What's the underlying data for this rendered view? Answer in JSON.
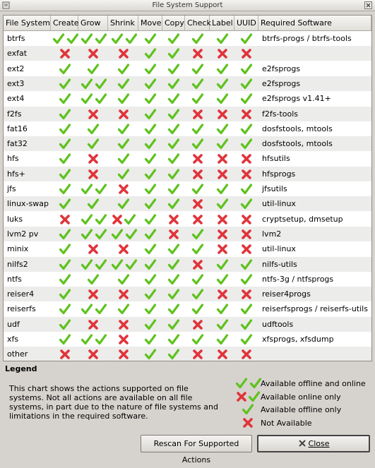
{
  "window": {
    "title": "File System Support"
  },
  "table": {
    "columns": [
      "File System",
      "Create",
      "Grow",
      "Shrink",
      "Move",
      "Copy",
      "Check",
      "Label",
      "UUID",
      "Required Software"
    ],
    "rows": [
      {
        "fs": "btrfs",
        "create": "both",
        "grow": "both",
        "shrink": "both",
        "move": "offline",
        "copy": "offline",
        "check": "offline",
        "label": "offline",
        "uuid": "offline",
        "software": "btrfs-progs / btrfs-tools"
      },
      {
        "fs": "exfat",
        "create": "none",
        "grow": "none",
        "shrink": "none",
        "move": "offline",
        "copy": "offline",
        "check": "none",
        "label": "none",
        "uuid": "none",
        "software": ""
      },
      {
        "fs": "ext2",
        "create": "offline",
        "grow": "offline",
        "shrink": "offline",
        "move": "offline",
        "copy": "offline",
        "check": "offline",
        "label": "offline",
        "uuid": "offline",
        "software": "e2fsprogs"
      },
      {
        "fs": "ext3",
        "create": "offline",
        "grow": "both",
        "shrink": "offline",
        "move": "offline",
        "copy": "offline",
        "check": "offline",
        "label": "offline",
        "uuid": "offline",
        "software": "e2fsprogs"
      },
      {
        "fs": "ext4",
        "create": "offline",
        "grow": "both",
        "shrink": "offline",
        "move": "offline",
        "copy": "offline",
        "check": "offline",
        "label": "offline",
        "uuid": "offline",
        "software": "e2fsprogs v1.41+"
      },
      {
        "fs": "f2fs",
        "create": "offline",
        "grow": "none",
        "shrink": "none",
        "move": "offline",
        "copy": "offline",
        "check": "none",
        "label": "none",
        "uuid": "none",
        "software": "f2fs-tools"
      },
      {
        "fs": "fat16",
        "create": "offline",
        "grow": "offline",
        "shrink": "offline",
        "move": "offline",
        "copy": "offline",
        "check": "offline",
        "label": "offline",
        "uuid": "offline",
        "software": "dosfstools, mtools"
      },
      {
        "fs": "fat32",
        "create": "offline",
        "grow": "offline",
        "shrink": "offline",
        "move": "offline",
        "copy": "offline",
        "check": "offline",
        "label": "offline",
        "uuid": "offline",
        "software": "dosfstools, mtools"
      },
      {
        "fs": "hfs",
        "create": "offline",
        "grow": "none",
        "shrink": "offline",
        "move": "offline",
        "copy": "offline",
        "check": "none",
        "label": "none",
        "uuid": "none",
        "software": "hfsutils"
      },
      {
        "fs": "hfs+",
        "create": "offline",
        "grow": "none",
        "shrink": "offline",
        "move": "offline",
        "copy": "offline",
        "check": "none",
        "label": "none",
        "uuid": "none",
        "software": "hfsprogs"
      },
      {
        "fs": "jfs",
        "create": "offline",
        "grow": "both",
        "shrink": "none",
        "move": "offline",
        "copy": "offline",
        "check": "offline",
        "label": "offline",
        "uuid": "offline",
        "software": "jfsutils"
      },
      {
        "fs": "linux-swap",
        "create": "offline",
        "grow": "offline",
        "shrink": "offline",
        "move": "offline",
        "copy": "offline",
        "check": "none",
        "label": "offline",
        "uuid": "offline",
        "software": "util-linux"
      },
      {
        "fs": "luks",
        "create": "none",
        "grow": "both",
        "shrink": "online",
        "move": "offline",
        "copy": "none",
        "check": "none",
        "label": "none",
        "uuid": "none",
        "software": "cryptsetup, dmsetup"
      },
      {
        "fs": "lvm2 pv",
        "create": "offline",
        "grow": "both",
        "shrink": "both",
        "move": "offline",
        "copy": "none",
        "check": "offline",
        "label": "none",
        "uuid": "none",
        "software": "lvm2"
      },
      {
        "fs": "minix",
        "create": "offline",
        "grow": "none",
        "shrink": "none",
        "move": "offline",
        "copy": "offline",
        "check": "offline",
        "label": "none",
        "uuid": "none",
        "software": "util-linux"
      },
      {
        "fs": "nilfs2",
        "create": "offline",
        "grow": "both",
        "shrink": "both",
        "move": "offline",
        "copy": "offline",
        "check": "none",
        "label": "offline",
        "uuid": "offline",
        "software": "nilfs-utils"
      },
      {
        "fs": "ntfs",
        "create": "offline",
        "grow": "offline",
        "shrink": "offline",
        "move": "offline",
        "copy": "offline",
        "check": "offline",
        "label": "offline",
        "uuid": "offline",
        "software": "ntfs-3g / ntfsprogs"
      },
      {
        "fs": "reiser4",
        "create": "offline",
        "grow": "none",
        "shrink": "none",
        "move": "offline",
        "copy": "offline",
        "check": "offline",
        "label": "none",
        "uuid": "none",
        "software": "reiser4progs"
      },
      {
        "fs": "reiserfs",
        "create": "offline",
        "grow": "both",
        "shrink": "offline",
        "move": "offline",
        "copy": "offline",
        "check": "offline",
        "label": "offline",
        "uuid": "offline",
        "software": "reiserfsprogs / reiserfs-utils"
      },
      {
        "fs": "udf",
        "create": "offline",
        "grow": "none",
        "shrink": "none",
        "move": "offline",
        "copy": "offline",
        "check": "none",
        "label": "offline",
        "uuid": "offline",
        "software": "udftools"
      },
      {
        "fs": "xfs",
        "create": "offline",
        "grow": "both",
        "shrink": "none",
        "move": "offline",
        "copy": "offline",
        "check": "offline",
        "label": "offline",
        "uuid": "offline",
        "software": "xfsprogs, xfsdump"
      },
      {
        "fs": "other",
        "create": "none",
        "grow": "none",
        "shrink": "none",
        "move": "offline",
        "copy": "offline",
        "check": "none",
        "label": "none",
        "uuid": "none",
        "software": ""
      }
    ]
  },
  "legend": {
    "title": "Legend",
    "text": "This chart shows the actions supported on file systems. Not all actions are available on all file systems, in part due to the nature of file systems and limitations in the required software.",
    "items": [
      {
        "icon": "both",
        "label": "Available offline and online"
      },
      {
        "icon": "online",
        "label": "Available online only"
      },
      {
        "icon": "offline",
        "label": "Available offline only"
      },
      {
        "icon": "none",
        "label": "Not Available"
      }
    ]
  },
  "buttons": {
    "rescan": "Rescan For Supported Actions",
    "close": "Close"
  },
  "colors": {
    "check": "#5fc21e",
    "cross": "#e0343a",
    "row_alt": "#ececeb"
  }
}
